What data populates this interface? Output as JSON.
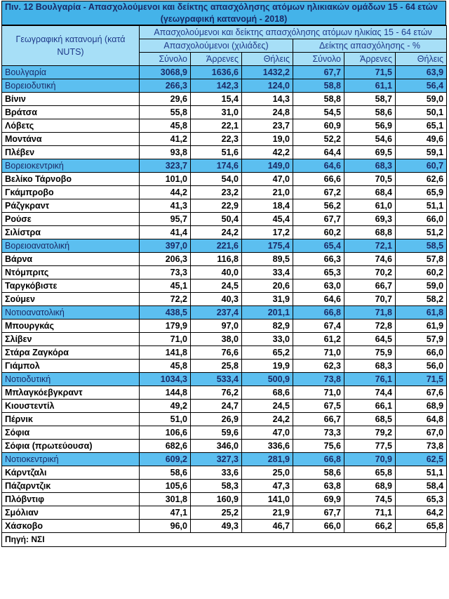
{
  "title_line1": "Πιν. 12  Βουλγαρία - Απασχολούμενοι και δείκτης απασχόλησης ατόμων ηλικιακών ομάδων 15 - 64 ετών",
  "title_line2": "(γεωγραφική κατανομή - 2018)",
  "header": {
    "geo_label": "Γεωγραφική κατανομή (κατά NUTS)",
    "main": "Απασχολούμενοι και δείκτης απασχόλησης ατόμων ηλικίας 15 - 64 ετών",
    "employed": "Απασχολούμενοι (χιλιάδες)",
    "rate": "Δείκτης απασχόλησης - %",
    "total": "Σύνολο",
    "men": "Άρρενες",
    "women": "Θήλεις"
  },
  "rows": [
    {
      "type": "region",
      "name": "Βουλγαρία",
      "values": [
        "3068,9",
        "1636,6",
        "1432,2",
        "67,7",
        "71,5",
        "63,9"
      ]
    },
    {
      "type": "region",
      "name": "Βορειοδυτική",
      "values": [
        "266,3",
        "142,3",
        "124,0",
        "58,8",
        "61,1",
        "56,4"
      ]
    },
    {
      "type": "city",
      "name": "Βίνιν",
      "values": [
        "29,6",
        "15,4",
        "14,3",
        "58,8",
        "58,7",
        "59,0"
      ]
    },
    {
      "type": "city",
      "name": "Βράτσα",
      "values": [
        "55,8",
        "31,0",
        "24,8",
        "54,5",
        "58,6",
        "50,1"
      ]
    },
    {
      "type": "city",
      "name": "Λόβετς",
      "values": [
        "45,8",
        "22,1",
        "23,7",
        "60,9",
        "56,9",
        "65,1"
      ]
    },
    {
      "type": "city",
      "name": "Μοντάνα",
      "values": [
        "41,2",
        "22,3",
        "19,0",
        "52,2",
        "54,6",
        "49,6"
      ]
    },
    {
      "type": "city",
      "name": "Πλέβεν",
      "values": [
        "93,8",
        "51,6",
        "42,2",
        "64,4",
        "69,5",
        "59,1"
      ]
    },
    {
      "type": "region",
      "name": "Βορειοκεντρική",
      "values": [
        "323,7",
        "174,6",
        "149,0",
        "64,6",
        "68,3",
        "60,7"
      ]
    },
    {
      "type": "city",
      "name": "Βελίκο Τάρνοβο",
      "values": [
        "101,0",
        "54,0",
        "47,0",
        "66,6",
        "70,5",
        "62,6"
      ]
    },
    {
      "type": "city",
      "name": "Γκάμπροβο",
      "values": [
        "44,2",
        "23,2",
        "21,0",
        "67,2",
        "68,4",
        "65,9"
      ]
    },
    {
      "type": "city",
      "name": "Ράζγκραντ",
      "values": [
        "41,3",
        "22,9",
        "18,4",
        "56,2",
        "61,0",
        "51,1"
      ]
    },
    {
      "type": "city",
      "name": "Ρούσε",
      "values": [
        "95,7",
        "50,4",
        "45,4",
        "67,7",
        "69,3",
        "66,0"
      ]
    },
    {
      "type": "city",
      "name": "Σιλίστρα",
      "values": [
        "41,4",
        "24,2",
        "17,2",
        "60,2",
        "68,8",
        "51,2"
      ]
    },
    {
      "type": "region",
      "name": "Βορειοανατολική",
      "values": [
        "397,0",
        "221,6",
        "175,4",
        "65,4",
        "72,1",
        "58,5"
      ]
    },
    {
      "type": "city",
      "name": "Βάρνα",
      "values": [
        "206,3",
        "116,8",
        "89,5",
        "66,3",
        "74,6",
        "57,8"
      ]
    },
    {
      "type": "city",
      "name": "Ντόμπριτς",
      "values": [
        "73,3",
        "40,0",
        "33,4",
        "65,3",
        "70,2",
        "60,2"
      ]
    },
    {
      "type": "city",
      "name": "Ταργκόβιστε",
      "values": [
        "45,1",
        "24,5",
        "20,6",
        "63,0",
        "66,7",
        "59,0"
      ]
    },
    {
      "type": "city",
      "name": "Σούμεν",
      "values": [
        "72,2",
        "40,3",
        "31,9",
        "64,6",
        "70,7",
        "58,2"
      ]
    },
    {
      "type": "region",
      "name": "Νοτιοανατολική",
      "values": [
        "438,5",
        "237,4",
        "201,1",
        "66,8",
        "71,8",
        "61,8"
      ]
    },
    {
      "type": "city",
      "name": "Μπουργκάς",
      "values": [
        "179,9",
        "97,0",
        "82,9",
        "67,4",
        "72,8",
        "61,9"
      ]
    },
    {
      "type": "city",
      "name": "Σλίβεν",
      "values": [
        "71,0",
        "38,0",
        "33,0",
        "61,2",
        "64,5",
        "57,9"
      ]
    },
    {
      "type": "city",
      "name": "Στάρα Ζαγκόρα",
      "values": [
        "141,8",
        "76,6",
        "65,2",
        "71,0",
        "75,9",
        "66,0"
      ]
    },
    {
      "type": "city",
      "name": "Γιάμπολ",
      "values": [
        "45,8",
        "25,8",
        "19,9",
        "62,3",
        "68,3",
        "56,0"
      ]
    },
    {
      "type": "region",
      "name": "Νοτιοδυτική",
      "values": [
        "1034,3",
        "533,4",
        "500,9",
        "73,8",
        "76,1",
        "71,5"
      ]
    },
    {
      "type": "city",
      "name": "Μπλαγκόεβγκραντ",
      "values": [
        "144,8",
        "76,2",
        "68,6",
        "71,0",
        "74,4",
        "67,6"
      ]
    },
    {
      "type": "city",
      "name": "Κιουστεντίλ",
      "values": [
        "49,2",
        "24,7",
        "24,5",
        "67,5",
        "66,1",
        "68,9"
      ]
    },
    {
      "type": "city",
      "name": "Πέρνικ",
      "values": [
        "51,0",
        "26,9",
        "24,2",
        "66,7",
        "68,5",
        "64,8"
      ]
    },
    {
      "type": "city",
      "name": "Σόφια",
      "values": [
        "106,6",
        "59,6",
        "47,0",
        "73,3",
        "79,2",
        "67,0"
      ]
    },
    {
      "type": "city",
      "name": "Σόφια (πρωτεύουσα)",
      "values": [
        "682,6",
        "346,0",
        "336,6",
        "75,6",
        "77,5",
        "73,8"
      ]
    },
    {
      "type": "region",
      "name": "Νοτιοκεντρική",
      "values": [
        "609,2",
        "327,3",
        "281,9",
        "66,8",
        "70,9",
        "62,5"
      ]
    },
    {
      "type": "city",
      "name": "Κάρντζαλι",
      "values": [
        "58,6",
        "33,6",
        "25,0",
        "58,6",
        "65,8",
        "51,1"
      ]
    },
    {
      "type": "city",
      "name": "Πάζαρντζικ",
      "values": [
        "105,6",
        "58,3",
        "47,3",
        "63,8",
        "68,9",
        "58,4"
      ]
    },
    {
      "type": "city",
      "name": "Πλόβντιφ",
      "values": [
        "301,8",
        "160,9",
        "141,0",
        "69,9",
        "74,5",
        "65,3"
      ]
    },
    {
      "type": "city",
      "name": "Σμόλιαν",
      "values": [
        "47,1",
        "25,2",
        "21,9",
        "67,7",
        "71,1",
        "64,2"
      ]
    },
    {
      "type": "city",
      "name": "Χάσκοβο",
      "values": [
        "96,0",
        "49,3",
        "46,7",
        "66,0",
        "66,2",
        "65,8"
      ]
    }
  ],
  "source": "Πηγή: ΝΣΙ"
}
